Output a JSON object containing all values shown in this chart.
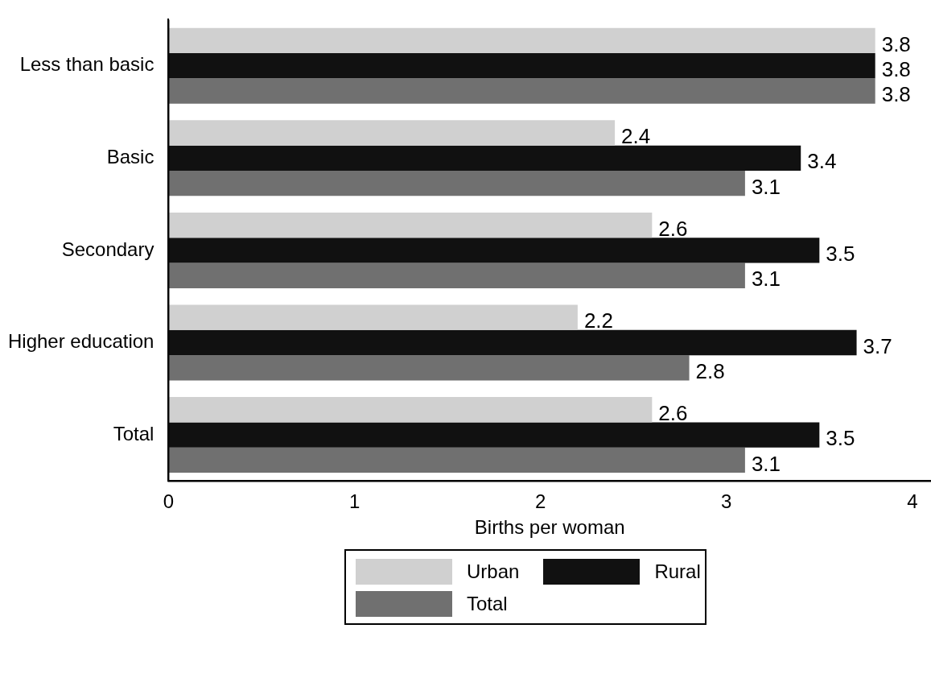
{
  "chart_data": {
    "type": "bar",
    "orientation": "horizontal",
    "xlabel": "Births per woman",
    "categories": [
      "Less than basic",
      "Basic",
      "Secondary",
      "Higher education",
      "Total"
    ],
    "series": [
      {
        "name": "Urban",
        "color": "#d0d0d0",
        "values": [
          3.8,
          2.4,
          2.6,
          2.2,
          2.6
        ]
      },
      {
        "name": "Rural",
        "color": "#111111",
        "values": [
          3.8,
          3.4,
          3.5,
          3.7,
          3.5
        ]
      },
      {
        "name": "Total",
        "color": "#707070",
        "values": [
          3.8,
          3.1,
          3.1,
          2.8,
          3.1
        ]
      }
    ],
    "xlim": [
      0,
      4.1
    ],
    "xticks": [
      0,
      1,
      2,
      3,
      4
    ],
    "data_labels": true,
    "grid": false,
    "legend": "bottom"
  }
}
